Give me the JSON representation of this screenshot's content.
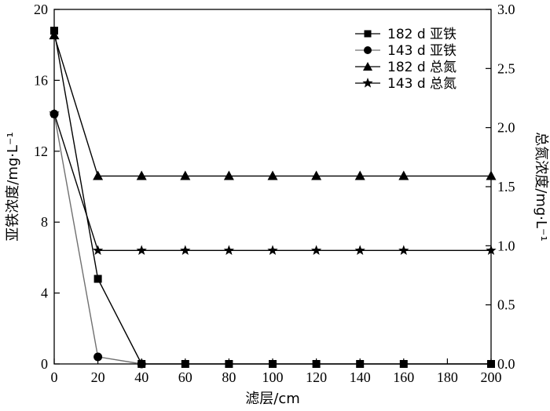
{
  "chart_data": {
    "type": "line",
    "xlabel": "滤层/cm",
    "ylabel_left": "亚铁浓度/mg·L⁻¹",
    "ylabel_right": "总氮浓度/mg·L⁻¹",
    "xlim": [
      0,
      200
    ],
    "ylim_left": [
      0,
      20
    ],
    "ylim_right": [
      0,
      3.0
    ],
    "x_ticks": [
      "0",
      "20",
      "40",
      "60",
      "80",
      "100",
      "120",
      "140",
      "160",
      "180",
      "200"
    ],
    "y_left_ticks": [
      "0",
      "4",
      "8",
      "12",
      "16",
      "20"
    ],
    "y_right_ticks": [
      "0.0",
      "0.5",
      "1.0",
      "1.5",
      "2.0",
      "2.5",
      "3.0"
    ],
    "grid": false,
    "legend_position": "top-right",
    "series": [
      {
        "name": "182 d 亚铁",
        "axis": "left",
        "marker": "square",
        "color": "#000000",
        "x": [
          0,
          20,
          40,
          60,
          80,
          100,
          120,
          140,
          160,
          200
        ],
        "y": [
          18.8,
          4.8,
          0,
          0,
          0,
          0,
          0,
          0,
          0,
          0
        ]
      },
      {
        "name": "143 d 亚铁",
        "axis": "left",
        "marker": "circle",
        "color": "#707070",
        "x": [
          0,
          20,
          40
        ],
        "y": [
          14.1,
          0.4,
          0
        ]
      },
      {
        "name": "182 d 总氮",
        "axis": "right",
        "marker": "triangle",
        "color": "#000000",
        "x": [
          0,
          20,
          40,
          60,
          80,
          100,
          120,
          140,
          160,
          200
        ],
        "y": [
          2.78,
          1.59,
          1.59,
          1.59,
          1.59,
          1.59,
          1.59,
          1.59,
          1.59,
          1.59
        ]
      },
      {
        "name": "143 d 总氮",
        "axis": "right",
        "marker": "star",
        "color": "#000000",
        "x": [
          0,
          20,
          40,
          60,
          80,
          100,
          120,
          140,
          160,
          200
        ],
        "y": [
          2.12,
          0.96,
          0.96,
          0.96,
          0.96,
          0.96,
          0.96,
          0.96,
          0.96,
          0.96
        ]
      }
    ]
  }
}
